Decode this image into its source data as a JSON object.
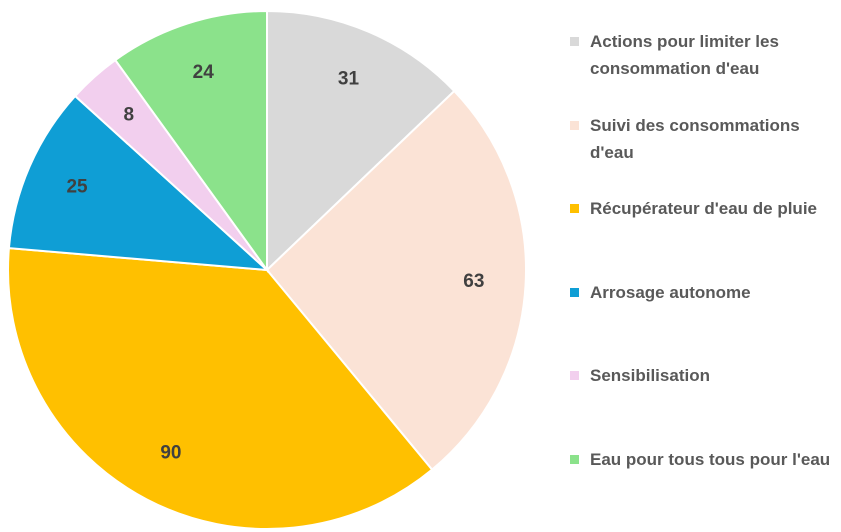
{
  "chart_data": {
    "type": "pie",
    "categories": [
      "Actions pour limiter les consommation d'eau",
      "Suivi des consommations d'eau",
      "Récupérateur d'eau de pluie",
      "Arrosage autonome",
      "Sensibilisation",
      "Eau pour tous tous pour l'eau"
    ],
    "values": [
      31,
      63,
      90,
      25,
      8,
      24
    ],
    "colors": [
      "#d9d9d9",
      "#fbe3d6",
      "#ffc000",
      "#0f9ed5",
      "#f2cfee",
      "#8be28b"
    ],
    "legend": "right"
  }
}
